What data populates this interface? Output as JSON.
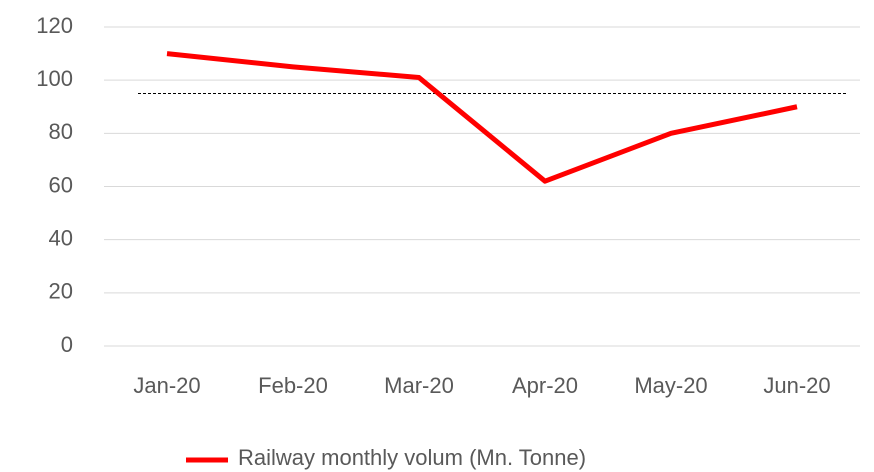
{
  "chart_data": {
    "type": "line",
    "categories": [
      "Jan-20",
      "Feb-20",
      "Mar-20",
      "Apr-20",
      "May-20",
      "Jun-20"
    ],
    "series": [
      {
        "name": "Railway monthly volum (Mn. Tonne)",
        "color": "#ff0000",
        "values": [
          110,
          105,
          101,
          62,
          80,
          90
        ]
      }
    ],
    "ylim": [
      0,
      120
    ],
    "yticks": [
      0,
      20,
      40,
      60,
      80,
      100,
      120
    ],
    "grid": true,
    "reference_line": 95,
    "legend": "bottom"
  }
}
